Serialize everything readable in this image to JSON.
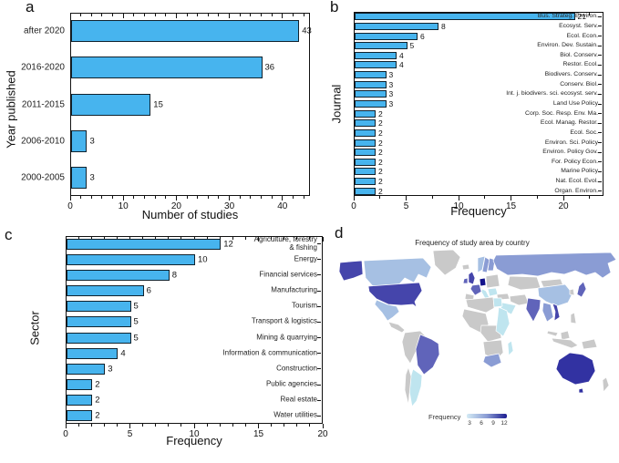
{
  "figure": {
    "panels": [
      {
        "id": "a",
        "label": "a"
      },
      {
        "id": "b",
        "label": "b"
      },
      {
        "id": "c",
        "label": "c"
      },
      {
        "id": "d",
        "label": "d"
      }
    ]
  },
  "colors": {
    "bar_fill": "#47b4ee",
    "bar_stroke": "#10222e",
    "frame": "#111111",
    "map_levels": {
      "none": "#c9c9c9",
      "low": "#bfe5ef",
      "lowmid": "#a6c0e3",
      "mid": "#8a9cd4",
      "midhigh": "#6064ba",
      "high": "#4545ab",
      "vhigh": "#3232a2",
      "top": "#14148c"
    },
    "legend_gradient": [
      "#d4ebf5",
      "#8a9cd4",
      "#1c1c90"
    ]
  },
  "chart_data": [
    {
      "id": "a",
      "type": "bar",
      "orientation": "horizontal",
      "xlabel": "Number of studies",
      "ylabel": "Year published",
      "categories": [
        "after 2020",
        "2016-2020",
        "2011-2015",
        "2006-2010",
        "2000-2005"
      ],
      "values": [
        43,
        36,
        15,
        3,
        3
      ],
      "xlim": [
        0,
        45
      ],
      "xticks": [
        0,
        10,
        20,
        30,
        40
      ],
      "grid": false,
      "value_labels": true
    },
    {
      "id": "b",
      "type": "bar",
      "orientation": "horizontal",
      "xlabel": "Frequency",
      "ylabel": "Journal",
      "categories": [
        "Bus. Strateg. Environ.",
        "Ecosyst. Serv.",
        "Ecol. Econ.",
        "Environ. Dev. Sustain.",
        "Biol. Conserv.",
        "Restor. Ecol.",
        "Biodivers. Conserv.",
        "Conserv. Biol.",
        "Int. j. biodivers. sci. ecosyst. serv.",
        "Land Use Policy",
        "Corp. Soc. Resp. Env. Ma.",
        "Ecol. Manag. Restor.",
        "Ecol. Soc.",
        "Environ. Sci. Policy",
        "Environ. Policy Gov.",
        "For. Policy Econ.",
        "Marine Policy",
        "Nat. Ecol. Evol.",
        "Organ. Environ."
      ],
      "values": [
        21,
        8,
        6,
        5,
        4,
        4,
        3,
        3,
        3,
        3,
        2,
        2,
        2,
        2,
        2,
        2,
        2,
        2,
        2
      ],
      "xlim": [
        0,
        23.8
      ],
      "xticks": [
        0,
        5,
        10,
        15,
        20
      ],
      "grid": false,
      "value_labels": true
    },
    {
      "id": "c",
      "type": "bar",
      "orientation": "horizontal",
      "xlabel": "Frequency",
      "ylabel": "Sector",
      "categories": [
        "Agriculture, forestry\n& fishing",
        "Energy",
        "Financial services",
        "Manufacturing",
        "Tourism",
        "Transport & logistics",
        "Mining & quarrying",
        "Information & communication",
        "Construction",
        "Public agencies",
        "Real estate",
        "Water utilities"
      ],
      "values": [
        12,
        10,
        8,
        6,
        5,
        5,
        5,
        4,
        3,
        2,
        2,
        2
      ],
      "xlim": [
        0,
        20
      ],
      "xticks": [
        0,
        5,
        10,
        15,
        20
      ],
      "grid": false,
      "value_labels": true
    },
    {
      "id": "d",
      "type": "choropleth",
      "title": "Frequency of study area by country",
      "legend": {
        "label": "Frequency",
        "ticks": [
          3,
          6,
          9,
          12
        ]
      },
      "regions": {
        "greenland": "none",
        "alaska": "high",
        "canada": "lowmid",
        "usa": "high",
        "mexico": "lowmid",
        "central-america": "none",
        "nw-south-america": "none",
        "brazil": "midhigh",
        "argentina": "low",
        "chile": "none",
        "iceland": "none",
        "uk": "high",
        "ireland": "midhigh",
        "norway": "lowmid",
        "sweden": "mid",
        "finland": "mid",
        "germany": "top",
        "france": "midhigh",
        "iberia": "none",
        "italy": "low",
        "east-europe": "none",
        "balkans": "low",
        "turkey": "none",
        "russia": "mid",
        "central-asia": "none",
        "mongolia": "none",
        "china": "lowmid",
        "korea": "none",
        "japan": "midhigh",
        "middle-east": "none",
        "saudi-arabia": "low",
        "north-africa": "none",
        "egypt": "low",
        "west-africa": "none",
        "central-africa": "none",
        "east-africa": "low",
        "southern-africa": "none",
        "south-africa": "mid",
        "madagascar": "low",
        "india": "midhigh",
        "myanmar-thailand": "mid",
        "vietnam": "high",
        "malaysia": "none",
        "borneo": "none",
        "indonesia": "none",
        "philippines": "none",
        "papua": "none",
        "australia": "vhigh",
        "tasmania": "vhigh",
        "new-zealand": "none"
      }
    }
  ]
}
